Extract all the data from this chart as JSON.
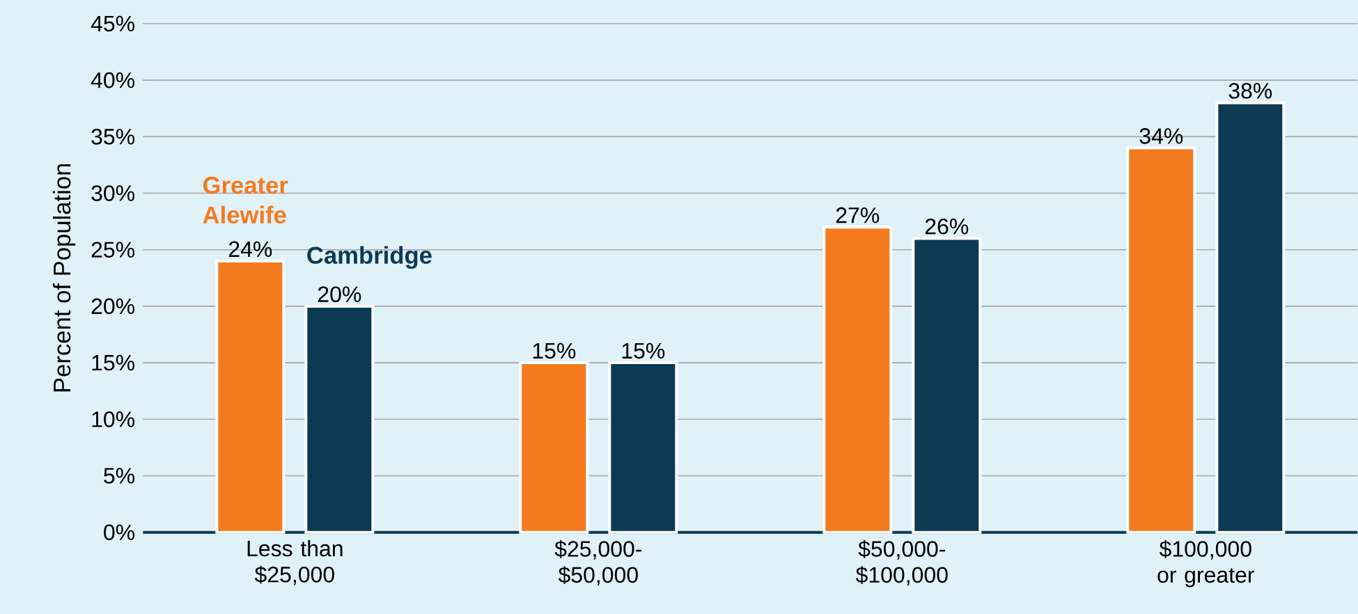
{
  "chart_data": {
    "type": "bar",
    "ylabel": "Percent of Population",
    "categories": [
      "Less than $25,000",
      "$25,000-$50,000",
      "$50,000-$100,000",
      "$100,000 or greater"
    ],
    "series": [
      {
        "name": "Greater Alewife",
        "color": "#f47b20",
        "values": [
          24,
          15,
          27,
          34
        ],
        "value_labels": [
          "24%",
          "15%",
          "27%",
          "34%"
        ]
      },
      {
        "name": "Cambridge",
        "color": "#0d3a52",
        "values": [
          20,
          15,
          26,
          38
        ],
        "value_labels": [
          "20%",
          "15%",
          "26%",
          "38%"
        ]
      }
    ],
    "ylim": [
      0,
      45
    ],
    "yticks": [
      {
        "value": 0,
        "label": "0%"
      },
      {
        "value": 5,
        "label": "5%"
      },
      {
        "value": 10,
        "label": "10%"
      },
      {
        "value": 15,
        "label": "15%"
      },
      {
        "value": 20,
        "label": "20%"
      },
      {
        "value": 25,
        "label": "25%"
      },
      {
        "value": 30,
        "label": "30%"
      },
      {
        "value": 35,
        "label": "35%"
      },
      {
        "value": 40,
        "label": "40%"
      },
      {
        "value": 45,
        "label": "45%"
      }
    ],
    "grid": "y"
  }
}
